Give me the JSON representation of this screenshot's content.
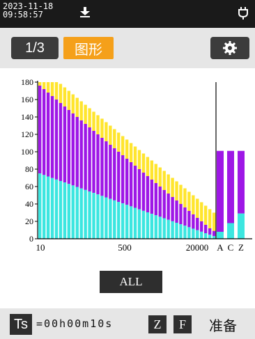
{
  "status": {
    "date": "2023-11-18",
    "time": "09:58:57",
    "icons": [
      "download-icon",
      "battery-plug-icon"
    ]
  },
  "toolbar": {
    "page_label": "1/3",
    "graph_label": "图形",
    "settings_icon": "gear-icon"
  },
  "colors": {
    "accent": "#f5a01a",
    "series_yellow": "#ffe52e",
    "series_purple": "#9e17e6",
    "series_cyan": "#3ce6e0",
    "dark": "#2e2e2e"
  },
  "chart_data": {
    "type": "bar",
    "stacked": true,
    "ylim": [
      0,
      180
    ],
    "yticks": [
      0,
      20,
      40,
      60,
      80,
      100,
      120,
      140,
      160,
      180
    ],
    "xtick_labels": [
      "10",
      "500",
      "20000",
      "A",
      "C",
      "Z"
    ],
    "spectrum": {
      "bands": 43,
      "cyan": [
        75,
        73.3,
        71.6,
        69.8,
        68.1,
        66.4,
        64.7,
        63,
        61.3,
        59.6,
        57.8,
        56.1,
        54.4,
        52.7,
        51,
        49.3,
        47.6,
        45.8,
        44.1,
        42.4,
        40.7,
        39,
        37.3,
        35.6,
        33.8,
        32.1,
        30.4,
        28.7,
        27,
        25.3,
        23.6,
        21.8,
        20.1,
        18.4,
        16.7,
        15,
        13.3,
        11.6,
        9.8,
        8.1,
        6.4,
        4.7,
        3
      ],
      "purple_top": [
        176,
        172,
        168,
        164,
        160,
        156,
        152,
        148,
        144,
        140,
        136,
        132,
        128,
        124,
        120,
        116,
        112,
        108,
        104,
        100,
        96,
        92,
        88,
        84,
        80,
        76,
        72,
        68,
        64,
        60,
        56,
        52,
        48,
        44,
        40,
        36,
        32,
        28,
        24,
        20,
        16,
        12,
        9
      ],
      "yellow_top": [
        180,
        180,
        180,
        180,
        180,
        178,
        174,
        170,
        166,
        162,
        158,
        154,
        150,
        146,
        142,
        138,
        134,
        130,
        126,
        122,
        118,
        114,
        110,
        106,
        102,
        98,
        94,
        90,
        86,
        82,
        78,
        74,
        70,
        66,
        62,
        58,
        54,
        50,
        46,
        42,
        38,
        34,
        30
      ]
    },
    "weighted": {
      "labels": [
        "A",
        "C",
        "Z"
      ],
      "cyan": [
        8,
        18,
        29
      ],
      "purple_top": [
        101,
        101,
        101
      ]
    }
  },
  "main": {
    "all_button": "ALL"
  },
  "bottom": {
    "ts_label": "Ts",
    "ts_value": "=00h00m10s",
    "z_label": "Z",
    "f_label": "F",
    "state": "准备"
  }
}
